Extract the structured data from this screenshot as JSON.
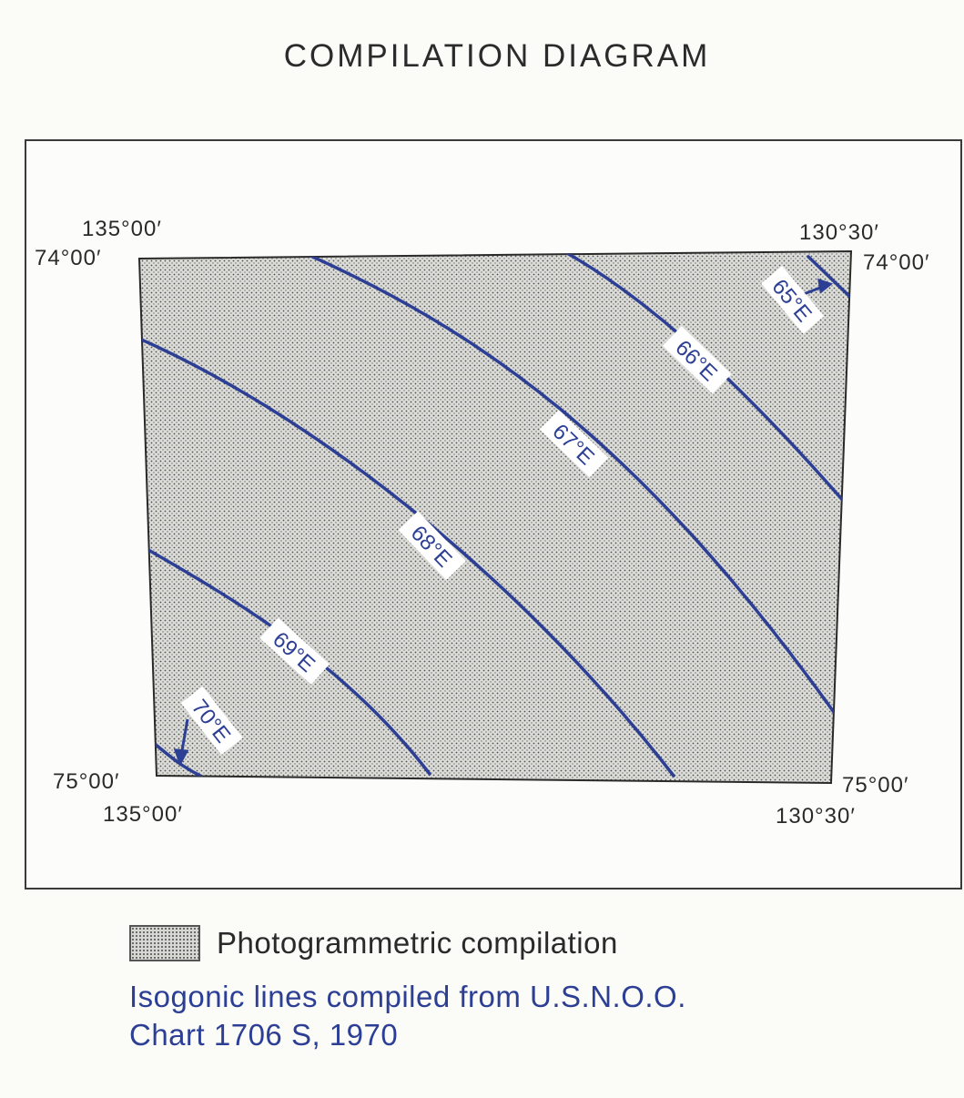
{
  "title": "COMPILATION DIAGRAM",
  "corners": {
    "top_left_lon": "135°00′",
    "top_left_lat": "74°00′",
    "top_right_lon": "130°30′",
    "top_right_lat": "74°00′",
    "bottom_left_lat": "75°00′",
    "bottom_left_lon": "135°00′",
    "bottom_right_lat": "75°00′",
    "bottom_right_lon": "130°30′"
  },
  "isogonic_lines": [
    {
      "label": "65°E"
    },
    {
      "label": "66°E"
    },
    {
      "label": "67°E"
    },
    {
      "label": "68°E"
    },
    {
      "label": "69°E"
    },
    {
      "label": "70°E"
    }
  ],
  "legend": {
    "swatch_label": "Photogrammetric compilation",
    "source_line1": "Isogonic lines compiled from U.S.N.O.O.",
    "source_line2": "Chart 1706 S, 1970"
  },
  "colors": {
    "isogonic_line": "#2c3f95",
    "compilation_fill": "#d6d6d2",
    "outline": "#2a2a2a"
  }
}
